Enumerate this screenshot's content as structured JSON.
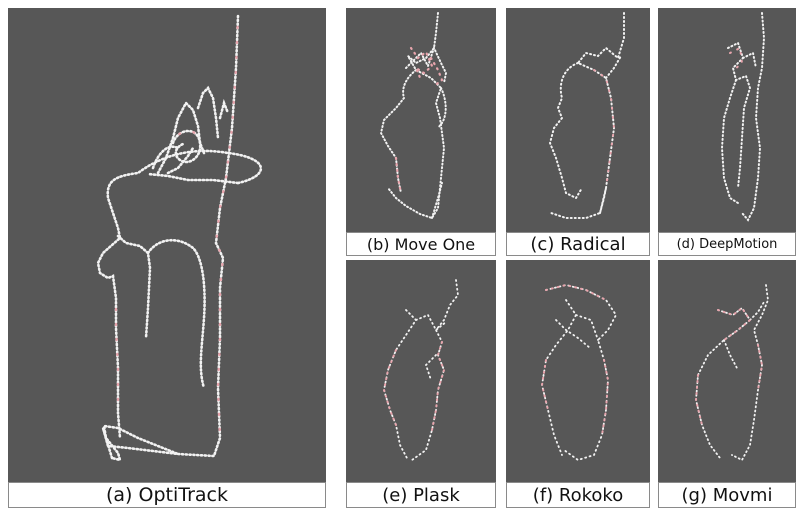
{
  "colors": {
    "background": "#575757",
    "trace_white": "#f2f2f2",
    "trace_pink": "#e8a5ad"
  },
  "panels": [
    {
      "key": "a",
      "caption": "(a) OptiTrack"
    },
    {
      "key": "b",
      "caption": "(b) Move One"
    },
    {
      "key": "c",
      "caption": "(c) Radical"
    },
    {
      "key": "d",
      "caption": "(d) DeepMotion"
    },
    {
      "key": "e",
      "caption": "(e) Plask"
    },
    {
      "key": "f",
      "caption": "(f) Rokoko"
    },
    {
      "key": "g",
      "caption": "(g) Movmi"
    }
  ]
}
